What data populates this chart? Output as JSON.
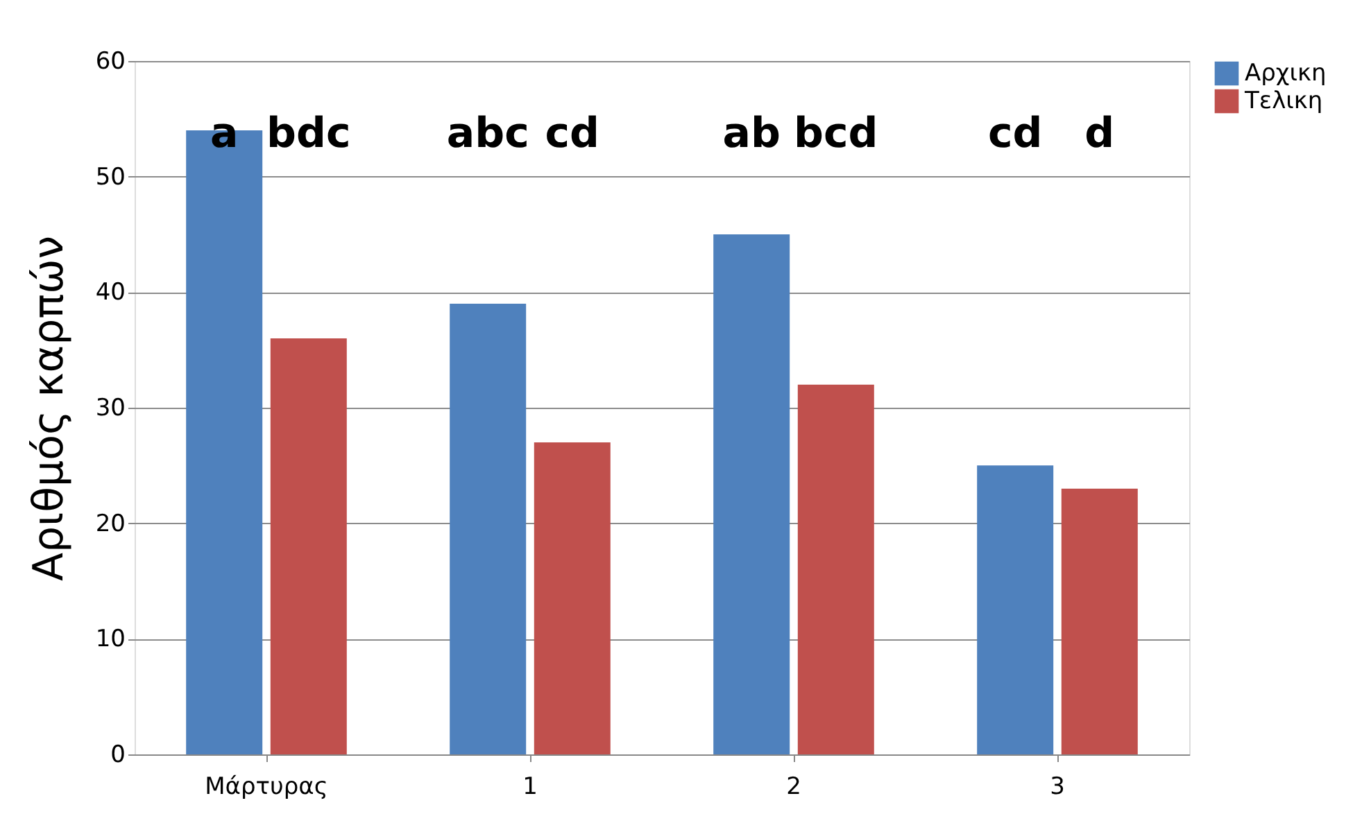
{
  "chart_data": {
    "type": "bar",
    "ylabel": "Αριθμός καρπών",
    "categories": [
      "Μάρτυρας",
      "1",
      "2",
      "3"
    ],
    "series": [
      {
        "name": "Αρχικη",
        "color": "#4f81bd",
        "values": [
          54,
          39,
          45,
          25
        ]
      },
      {
        "name": "Τελικη",
        "color": "#c0504d",
        "values": [
          36,
          27,
          32,
          23
        ]
      }
    ],
    "ylim": [
      0,
      60
    ],
    "yticks": [
      0,
      10,
      20,
      30,
      40,
      50,
      60
    ],
    "grid": "y",
    "legend": "right",
    "annotations": [
      "a",
      "bdc",
      "abc",
      "cd",
      "ab",
      "bcd",
      "cd",
      "d"
    ]
  }
}
